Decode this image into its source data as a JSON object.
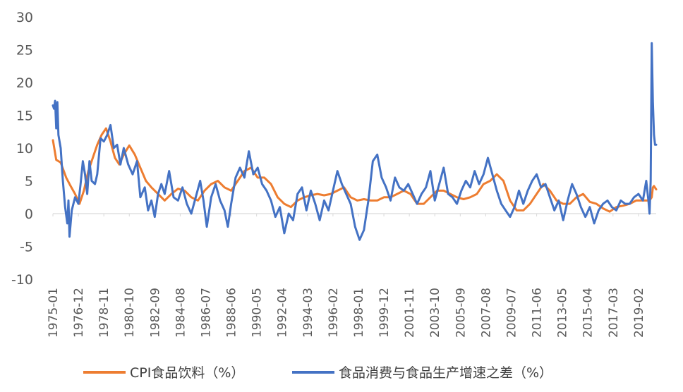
{
  "chart_data": {
    "type": "line",
    "title": "",
    "xlabel": "",
    "ylabel": "",
    "ylim": [
      -10,
      30
    ],
    "yticks": [
      "30",
      "25",
      "20",
      "15",
      "10",
      "5",
      "0",
      "-5",
      "-10"
    ],
    "x_tick_labels": [
      "1975-01",
      "1976-12",
      "1978-11",
      "1980-10",
      "1982-09",
      "1984-08",
      "1986-07",
      "1988-06",
      "1990-05",
      "1992-04",
      "1994-03",
      "1996-02",
      "1998-01",
      "1999-12",
      "2001-11",
      "2003-10",
      "2005-09",
      "2007-08",
      "2009-07",
      "2011-06",
      "2013-05",
      "2015-04",
      "2017-03",
      "2019-02"
    ],
    "x_range": [
      "1975-01",
      "2020-06"
    ],
    "grid": false,
    "legend_position": "bottom",
    "series": [
      {
        "name": "CPI食品饮料（%）",
        "color": "#ED7D31",
        "points": [
          [
            "1975-01",
            11.2
          ],
          [
            "1975-04",
            8.2
          ],
          [
            "1975-08",
            7.8
          ],
          [
            "1976-01",
            5.5
          ],
          [
            "1976-05",
            4.2
          ],
          [
            "1976-09",
            3.0
          ],
          [
            "1977-01",
            1.5
          ],
          [
            "1977-05",
            3.5
          ],
          [
            "1977-09",
            6.5
          ],
          [
            "1978-01",
            8.5
          ],
          [
            "1978-05",
            10.5
          ],
          [
            "1978-09",
            12.0
          ],
          [
            "1979-01",
            13.0
          ],
          [
            "1979-05",
            11.0
          ],
          [
            "1979-09",
            8.5
          ],
          [
            "1980-01",
            7.5
          ],
          [
            "1980-05",
            9.0
          ],
          [
            "1980-10",
            10.4
          ],
          [
            "1981-03",
            9.0
          ],
          [
            "1981-08",
            7.0
          ],
          [
            "1982-01",
            5.0
          ],
          [
            "1982-06",
            4.0
          ],
          [
            "1982-12",
            3.0
          ],
          [
            "1983-06",
            2.0
          ],
          [
            "1983-12",
            3.0
          ],
          [
            "1984-06",
            3.8
          ],
          [
            "1984-12",
            3.5
          ],
          [
            "1985-06",
            2.5
          ],
          [
            "1985-12",
            2.0
          ],
          [
            "1986-06",
            3.5
          ],
          [
            "1986-12",
            4.5
          ],
          [
            "1987-06",
            5.0
          ],
          [
            "1987-12",
            4.0
          ],
          [
            "1988-06",
            3.5
          ],
          [
            "1988-12",
            5.0
          ],
          [
            "1989-06",
            6.5
          ],
          [
            "1989-12",
            7.0
          ],
          [
            "1990-06",
            5.5
          ],
          [
            "1990-12",
            5.5
          ],
          [
            "1991-06",
            4.5
          ],
          [
            "1991-12",
            2.5
          ],
          [
            "1992-06",
            1.5
          ],
          [
            "1992-12",
            1.0
          ],
          [
            "1993-06",
            2.0
          ],
          [
            "1993-12",
            2.5
          ],
          [
            "1994-06",
            2.8
          ],
          [
            "1994-12",
            3.0
          ],
          [
            "1995-06",
            2.8
          ],
          [
            "1995-12",
            3.0
          ],
          [
            "1996-06",
            3.5
          ],
          [
            "1996-12",
            4.0
          ],
          [
            "1997-06",
            2.5
          ],
          [
            "1997-12",
            2.0
          ],
          [
            "1998-06",
            2.2
          ],
          [
            "1998-12",
            2.0
          ],
          [
            "1999-06",
            2.0
          ],
          [
            "1999-12",
            2.5
          ],
          [
            "2000-06",
            2.5
          ],
          [
            "2000-12",
            3.0
          ],
          [
            "2001-06",
            3.5
          ],
          [
            "2001-12",
            3.0
          ],
          [
            "2002-06",
            1.5
          ],
          [
            "2002-12",
            1.5
          ],
          [
            "2003-06",
            2.5
          ],
          [
            "2003-12",
            3.5
          ],
          [
            "2004-06",
            3.5
          ],
          [
            "2004-12",
            3.0
          ],
          [
            "2005-06",
            2.5
          ],
          [
            "2005-12",
            2.2
          ],
          [
            "2006-06",
            2.5
          ],
          [
            "2006-12",
            3.0
          ],
          [
            "2007-06",
            4.5
          ],
          [
            "2007-12",
            5.0
          ],
          [
            "2008-06",
            6.0
          ],
          [
            "2008-12",
            5.0
          ],
          [
            "2009-06",
            2.0
          ],
          [
            "2009-12",
            0.5
          ],
          [
            "2010-06",
            0.5
          ],
          [
            "2010-12",
            1.5
          ],
          [
            "2011-06",
            3.0
          ],
          [
            "2011-12",
            4.5
          ],
          [
            "2012-06",
            3.5
          ],
          [
            "2012-12",
            2.0
          ],
          [
            "2013-06",
            1.5
          ],
          [
            "2013-12",
            1.5
          ],
          [
            "2014-06",
            2.5
          ],
          [
            "2014-12",
            3.0
          ],
          [
            "2015-06",
            1.8
          ],
          [
            "2015-12",
            1.5
          ],
          [
            "2016-06",
            0.8
          ],
          [
            "2016-12",
            0.3
          ],
          [
            "2017-06",
            1.0
          ],
          [
            "2017-12",
            1.2
          ],
          [
            "2018-06",
            1.5
          ],
          [
            "2018-12",
            2.0
          ],
          [
            "2019-06",
            2.0
          ],
          [
            "2019-12",
            2.0
          ],
          [
            "2020-02",
            2.5
          ],
          [
            "2020-03",
            4.0
          ],
          [
            "2020-04",
            4.2
          ],
          [
            "2020-06",
            3.7
          ]
        ]
      },
      {
        "name": "食品消费与食品生产增速之差（%）",
        "color": "#4472C4",
        "points": [
          [
            "1975-01",
            16.5
          ],
          [
            "1975-02",
            16.0
          ],
          [
            "1975-03",
            17.2
          ],
          [
            "1975-04",
            13.0
          ],
          [
            "1975-05",
            17.0
          ],
          [
            "1975-06",
            12.0
          ],
          [
            "1975-08",
            10.0
          ],
          [
            "1975-10",
            5.0
          ],
          [
            "1975-12",
            1.0
          ],
          [
            "1976-02",
            -1.5
          ],
          [
            "1976-03",
            2.0
          ],
          [
            "1976-04",
            -3.5
          ],
          [
            "1976-06",
            0.5
          ],
          [
            "1976-09",
            2.5
          ],
          [
            "1976-12",
            1.5
          ],
          [
            "1977-02",
            4.5
          ],
          [
            "1977-04",
            8.0
          ],
          [
            "1977-06",
            6.0
          ],
          [
            "1977-08",
            3.0
          ],
          [
            "1977-10",
            8.0
          ],
          [
            "1977-12",
            5.0
          ],
          [
            "1978-03",
            4.5
          ],
          [
            "1978-05",
            6.0
          ],
          [
            "1978-08",
            11.5
          ],
          [
            "1978-11",
            11.0
          ],
          [
            "1979-02",
            12.0
          ],
          [
            "1979-05",
            13.5
          ],
          [
            "1979-08",
            10.0
          ],
          [
            "1979-11",
            10.5
          ],
          [
            "1980-02",
            7.5
          ],
          [
            "1980-05",
            10.0
          ],
          [
            "1980-09",
            7.5
          ],
          [
            "1981-01",
            6.0
          ],
          [
            "1981-05",
            8.0
          ],
          [
            "1981-08",
            2.5
          ],
          [
            "1981-12",
            4.0
          ],
          [
            "1982-03",
            0.5
          ],
          [
            "1982-06",
            2.0
          ],
          [
            "1982-09",
            -0.5
          ],
          [
            "1982-12",
            3.0
          ],
          [
            "1983-03",
            4.5
          ],
          [
            "1983-06",
            3.0
          ],
          [
            "1983-10",
            6.5
          ],
          [
            "1984-02",
            2.5
          ],
          [
            "1984-06",
            2.0
          ],
          [
            "1984-10",
            4.0
          ],
          [
            "1985-02",
            1.5
          ],
          [
            "1985-06",
            0.0
          ],
          [
            "1985-10",
            2.5
          ],
          [
            "1986-02",
            5.0
          ],
          [
            "1986-05",
            2.0
          ],
          [
            "1986-08",
            -2.0
          ],
          [
            "1986-12",
            2.5
          ],
          [
            "1987-04",
            4.5
          ],
          [
            "1987-08",
            2.0
          ],
          [
            "1987-12",
            0.5
          ],
          [
            "1988-03",
            -2.0
          ],
          [
            "1988-06",
            1.5
          ],
          [
            "1988-10",
            5.5
          ],
          [
            "1989-02",
            7.0
          ],
          [
            "1989-06",
            5.5
          ],
          [
            "1989-10",
            9.5
          ],
          [
            "1990-02",
            6.0
          ],
          [
            "1990-06",
            7.0
          ],
          [
            "1990-10",
            4.5
          ],
          [
            "1991-02",
            3.5
          ],
          [
            "1991-06",
            2.0
          ],
          [
            "1991-10",
            -0.5
          ],
          [
            "1992-02",
            1.0
          ],
          [
            "1992-06",
            -3.0
          ],
          [
            "1992-10",
            0.0
          ],
          [
            "1993-02",
            -1.0
          ],
          [
            "1993-06",
            3.0
          ],
          [
            "1993-10",
            4.0
          ],
          [
            "1994-02",
            0.5
          ],
          [
            "1994-06",
            3.5
          ],
          [
            "1994-10",
            1.5
          ],
          [
            "1995-02",
            -1.0
          ],
          [
            "1995-06",
            2.0
          ],
          [
            "1995-10",
            0.5
          ],
          [
            "1996-02",
            3.5
          ],
          [
            "1996-06",
            6.5
          ],
          [
            "1996-10",
            4.5
          ],
          [
            "1997-02",
            3.0
          ],
          [
            "1997-06",
            1.5
          ],
          [
            "1997-10",
            -2.0
          ],
          [
            "1998-02",
            -4.0
          ],
          [
            "1998-06",
            -2.5
          ],
          [
            "1998-10",
            2.0
          ],
          [
            "1999-02",
            8.0
          ],
          [
            "1999-06",
            9.0
          ],
          [
            "1999-10",
            5.5
          ],
          [
            "2000-02",
            4.0
          ],
          [
            "2000-06",
            2.0
          ],
          [
            "2000-10",
            5.5
          ],
          [
            "2001-02",
            4.0
          ],
          [
            "2001-06",
            3.5
          ],
          [
            "2001-10",
            4.5
          ],
          [
            "2002-02",
            3.0
          ],
          [
            "2002-06",
            1.5
          ],
          [
            "2002-10",
            3.0
          ],
          [
            "2003-02",
            4.0
          ],
          [
            "2003-06",
            6.5
          ],
          [
            "2003-10",
            2.0
          ],
          [
            "2004-02",
            4.5
          ],
          [
            "2004-06",
            7.0
          ],
          [
            "2004-10",
            3.0
          ],
          [
            "2005-02",
            2.5
          ],
          [
            "2005-06",
            1.5
          ],
          [
            "2005-10",
            3.5
          ],
          [
            "2006-02",
            5.0
          ],
          [
            "2006-06",
            4.0
          ],
          [
            "2006-10",
            6.5
          ],
          [
            "2007-02",
            4.5
          ],
          [
            "2007-06",
            6.0
          ],
          [
            "2007-10",
            8.5
          ],
          [
            "2008-02",
            6.0
          ],
          [
            "2008-06",
            3.5
          ],
          [
            "2008-10",
            1.5
          ],
          [
            "2009-02",
            0.5
          ],
          [
            "2009-06",
            -0.5
          ],
          [
            "2009-10",
            1.0
          ],
          [
            "2010-02",
            3.5
          ],
          [
            "2010-06",
            1.5
          ],
          [
            "2010-10",
            3.5
          ],
          [
            "2011-02",
            5.0
          ],
          [
            "2011-06",
            6.0
          ],
          [
            "2011-10",
            4.0
          ],
          [
            "2012-02",
            4.5
          ],
          [
            "2012-06",
            2.5
          ],
          [
            "2012-10",
            0.5
          ],
          [
            "2013-02",
            2.0
          ],
          [
            "2013-06",
            -1.0
          ],
          [
            "2013-10",
            2.0
          ],
          [
            "2014-02",
            4.5
          ],
          [
            "2014-06",
            3.0
          ],
          [
            "2014-10",
            1.0
          ],
          [
            "2015-02",
            -0.5
          ],
          [
            "2015-06",
            1.0
          ],
          [
            "2015-10",
            -1.5
          ],
          [
            "2016-02",
            0.5
          ],
          [
            "2016-06",
            1.5
          ],
          [
            "2016-10",
            2.0
          ],
          [
            "2017-02",
            1.0
          ],
          [
            "2017-06",
            0.5
          ],
          [
            "2017-10",
            2.0
          ],
          [
            "2018-02",
            1.5
          ],
          [
            "2018-06",
            1.5
          ],
          [
            "2018-10",
            2.5
          ],
          [
            "2019-02",
            3.0
          ],
          [
            "2019-06",
            2.0
          ],
          [
            "2019-09",
            5.0
          ],
          [
            "2019-11",
            2.0
          ],
          [
            "2019-12",
            0.0
          ],
          [
            "2020-01",
            5.0
          ],
          [
            "2020-02",
            26.0
          ],
          [
            "2020-03",
            17.0
          ],
          [
            "2020-04",
            12.0
          ],
          [
            "2020-05",
            10.5
          ],
          [
            "2020-06",
            10.5
          ]
        ]
      }
    ]
  },
  "legend": {
    "items": [
      {
        "label": "CPI食品饮料（%）"
      },
      {
        "label": "食品消费与食品生产增速之差（%）"
      }
    ]
  }
}
